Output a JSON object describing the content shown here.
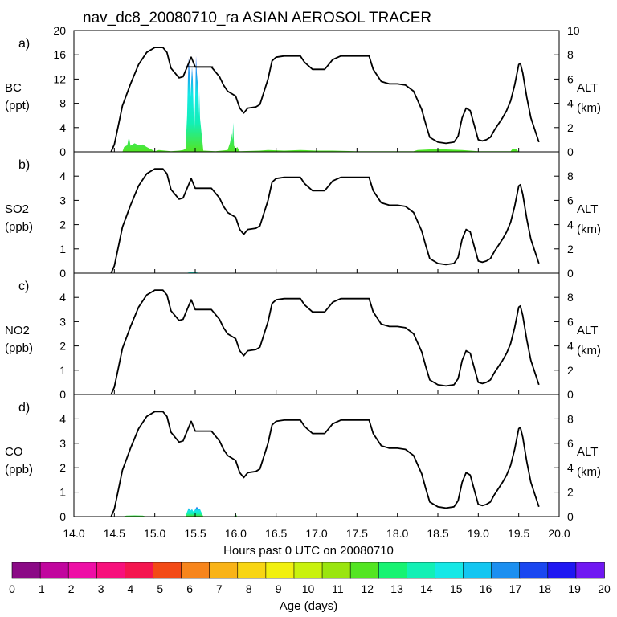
{
  "title": "nav_dc8_20080710_ra ASIAN AEROSOL TRACER",
  "xlabel": "Hours past 0 UTC on 20080710",
  "x_range": [
    14.0,
    20.0
  ],
  "x_ticks": [
    "14.0",
    "14.5",
    "15.0",
    "15.5",
    "16.0",
    "16.5",
    "17.0",
    "17.5",
    "18.0",
    "18.5",
    "19.0",
    "19.5",
    "20.0"
  ],
  "right_axis": {
    "name": "ALT",
    "unit": "(km)",
    "range": [
      0,
      10
    ],
    "ticks": [
      "0",
      "2",
      "4",
      "6",
      "8",
      "10"
    ],
    "ticks_short": [
      "0",
      "2",
      "4",
      "6",
      "8"
    ]
  },
  "colorbar": {
    "label": "Age (days)",
    "ticks": [
      "0",
      "1",
      "2",
      "3",
      "4",
      "5",
      "6",
      "7",
      "8",
      "9",
      "10",
      "11",
      "12",
      "13",
      "14",
      "15",
      "16",
      "17",
      "18",
      "19",
      "20"
    ],
    "colors": [
      "#8b0a86",
      "#c1069e",
      "#ee0fa6",
      "#f7107c",
      "#f4154f",
      "#f34a16",
      "#f7851c",
      "#f9b317",
      "#f8d513",
      "#f2f00f",
      "#c9f20e",
      "#9ae50f",
      "#53e522",
      "#17f372",
      "#12f0b5",
      "#15e8e6",
      "#13c6f1",
      "#1c8ff0",
      "#1a47f0",
      "#1f17f2",
      "#7018f2"
    ]
  },
  "chart_data": [
    {
      "panel": "a)",
      "species": "BC",
      "unit": "(ppt)",
      "type": "area",
      "ylim": [
        0,
        20
      ],
      "yticks": [
        "0",
        "4",
        "8",
        "12",
        "16",
        "20"
      ],
      "tracer_x": [
        14.6,
        14.62,
        14.66,
        14.68,
        14.7,
        14.75,
        14.8,
        14.85,
        14.9,
        15.0,
        15.05,
        15.2,
        15.3,
        15.35,
        15.38,
        15.4,
        15.41,
        15.42,
        15.43,
        15.44,
        15.46,
        15.47,
        15.48,
        15.49,
        15.5,
        15.51,
        15.52,
        15.53,
        15.54,
        15.55,
        15.56,
        15.58,
        15.6,
        15.75,
        15.9,
        15.93,
        15.95,
        15.96,
        15.97,
        15.98,
        16.0,
        16.02,
        16.05,
        16.3,
        16.4,
        16.6,
        16.8,
        17.0,
        17.2,
        17.5,
        18.2,
        18.25,
        18.4,
        18.6,
        18.8,
        18.9,
        19.0,
        19.4,
        19.43,
        19.45,
        19.47,
        19.5
      ],
      "tracer_y": [
        0,
        0.8,
        1.1,
        2.5,
        1.0,
        1.4,
        1.1,
        1.2,
        0.8,
        0.1,
        0.3,
        0.1,
        0.2,
        0.3,
        0.5,
        6.0,
        12.0,
        15.5,
        13.0,
        9.0,
        14.0,
        12.0,
        6.5,
        3.8,
        9.0,
        15.8,
        13.0,
        11.5,
        6.0,
        10.0,
        5.5,
        2.8,
        0.2,
        0.1,
        0.3,
        1.5,
        3.0,
        2.0,
        4.8,
        1.0,
        0.5,
        0.8,
        0.1,
        0.2,
        0.3,
        0.2,
        0.3,
        0.2,
        0.2,
        0.1,
        0.1,
        0.3,
        0.4,
        0.4,
        0.3,
        0.2,
        0.1,
        0.1,
        0.6,
        0.4,
        0.5,
        0.0
      ],
      "flight_level_ppt": 14.0,
      "flight_level_start": 15.38,
      "flight_level_end": 15.72
    },
    {
      "panel": "b)",
      "species": "SO2",
      "unit": "(ppb)",
      "type": "area",
      "ylim": [
        0,
        5
      ],
      "yticks": [
        "0",
        "1",
        "2",
        "3",
        "4"
      ],
      "tracer_x": [
        15.38,
        15.42,
        15.48,
        15.52,
        15.56
      ],
      "tracer_y": [
        0,
        0.03,
        0.05,
        0.03,
        0
      ]
    },
    {
      "panel": "c)",
      "species": "NO2",
      "unit": "(ppb)",
      "type": "area",
      "ylim": [
        0,
        5
      ],
      "yticks": [
        "0",
        "1",
        "2",
        "3",
        "4"
      ],
      "tracer_x": [],
      "tracer_y": []
    },
    {
      "panel": "d)",
      "species": "CO",
      "unit": "(ppb)",
      "type": "area",
      "ylim": [
        0,
        5
      ],
      "yticks": [
        "0",
        "1",
        "2",
        "3",
        "4"
      ],
      "tracer_x": [
        14.6,
        14.65,
        14.75,
        14.85,
        14.9,
        15.38,
        15.4,
        15.42,
        15.44,
        15.46,
        15.48,
        15.5,
        15.52,
        15.54,
        15.56,
        15.6,
        15.98,
        16.0,
        16.02
      ],
      "tracer_y": [
        0,
        0.04,
        0.05,
        0.04,
        0,
        0,
        0.2,
        0.35,
        0.25,
        0.3,
        0.2,
        0.3,
        0.4,
        0.3,
        0.3,
        0,
        0,
        0.12,
        0
      ]
    }
  ],
  "altitude_km": {
    "x": [
      14.46,
      14.5,
      14.55,
      14.6,
      14.7,
      14.8,
      14.9,
      15.0,
      15.05,
      15.1,
      15.15,
      15.2,
      15.3,
      15.35,
      15.4,
      15.45,
      15.5,
      15.7,
      15.8,
      15.85,
      15.9,
      15.95,
      16.0,
      16.05,
      16.1,
      16.15,
      16.25,
      16.3,
      16.4,
      16.45,
      16.5,
      16.6,
      16.7,
      16.8,
      16.85,
      16.9,
      16.95,
      17.0,
      17.1,
      17.15,
      17.2,
      17.3,
      17.5,
      17.6,
      17.65,
      17.7,
      17.8,
      17.9,
      18.0,
      18.1,
      18.2,
      18.3,
      18.35,
      18.4,
      18.5,
      18.6,
      18.7,
      18.75,
      18.8,
      18.85,
      18.9,
      18.95,
      19.0,
      19.05,
      19.1,
      19.15,
      19.2,
      19.3,
      19.35,
      19.4,
      19.45,
      19.5,
      19.52,
      19.55,
      19.6,
      19.65,
      19.7,
      19.75
    ],
    "y": [
      0,
      0.6,
      2.2,
      3.8,
      5.6,
      7.2,
      8.2,
      8.6,
      8.6,
      8.6,
      8.2,
      6.9,
      6.1,
      6.2,
      7.0,
      7.8,
      7.0,
      7.0,
      6.2,
      5.5,
      5.0,
      4.8,
      4.6,
      3.6,
      3.2,
      3.6,
      3.7,
      3.9,
      6.0,
      7.5,
      7.8,
      7.9,
      7.9,
      7.9,
      7.4,
      7.1,
      6.8,
      6.8,
      6.8,
      7.2,
      7.6,
      7.9,
      7.9,
      7.9,
      7.9,
      6.8,
      5.8,
      5.6,
      5.6,
      5.5,
      5.0,
      3.5,
      2.3,
      1.2,
      0.8,
      0.7,
      0.8,
      1.3,
      2.8,
      3.6,
      3.4,
      2.2,
      1.0,
      0.9,
      1.0,
      1.2,
      1.8,
      2.8,
      3.4,
      4.2,
      5.5,
      7.2,
      7.3,
      6.5,
      4.5,
      2.8,
      1.8,
      0.8
    ]
  }
}
